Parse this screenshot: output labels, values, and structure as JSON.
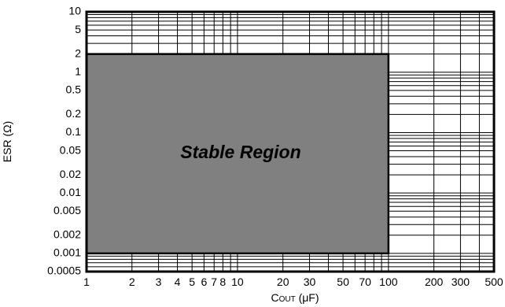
{
  "chart_data": {
    "type": "area",
    "title": "",
    "xlabel": "C",
    "xlabel_sub": "OUT",
    "xlabel_unit": "(μF)",
    "ylabel": "ESR (Ω)",
    "x_scale": "log",
    "y_scale": "log",
    "xlim": [
      1,
      500
    ],
    "ylim": [
      0.0005,
      10
    ],
    "grid": true,
    "x_ticks": [
      {
        "value": 1,
        "label": "1"
      },
      {
        "value": 2,
        "label": "2"
      },
      {
        "value": 3,
        "label": "3"
      },
      {
        "value": 4,
        "label": "4"
      },
      {
        "value": 5,
        "label": "5"
      },
      {
        "value": 6,
        "label": "6"
      },
      {
        "value": 7,
        "label": "7"
      },
      {
        "value": 8,
        "label": "8"
      },
      {
        "value": 10,
        "label": "10"
      },
      {
        "value": 20,
        "label": "20"
      },
      {
        "value": 30,
        "label": "30"
      },
      {
        "value": 50,
        "label": "50"
      },
      {
        "value": 70,
        "label": "70"
      },
      {
        "value": 100,
        "label": "100"
      },
      {
        "value": 200,
        "label": "200"
      },
      {
        "value": 300,
        "label": "300"
      },
      {
        "value": 500,
        "label": "500"
      }
    ],
    "y_ticks": [
      {
        "value": 10,
        "label": "10"
      },
      {
        "value": 5,
        "label": "5"
      },
      {
        "value": 2,
        "label": "2"
      },
      {
        "value": 1,
        "label": "1"
      },
      {
        "value": 0.5,
        "label": "0.5"
      },
      {
        "value": 0.2,
        "label": "0.2"
      },
      {
        "value": 0.1,
        "label": "0.1"
      },
      {
        "value": 0.05,
        "label": "0.05"
      },
      {
        "value": 0.02,
        "label": "0.02"
      },
      {
        "value": 0.01,
        "label": "0.01"
      },
      {
        "value": 0.005,
        "label": "0.005"
      },
      {
        "value": 0.002,
        "label": "0.002"
      },
      {
        "value": 0.001,
        "label": "0.001"
      },
      {
        "value": 0.0005,
        "label": "0.0005"
      }
    ],
    "regions": [
      {
        "name": "Stable Region",
        "x_range": [
          1,
          100
        ],
        "y_range": [
          0.001,
          2
        ],
        "color": "#808080"
      }
    ]
  }
}
